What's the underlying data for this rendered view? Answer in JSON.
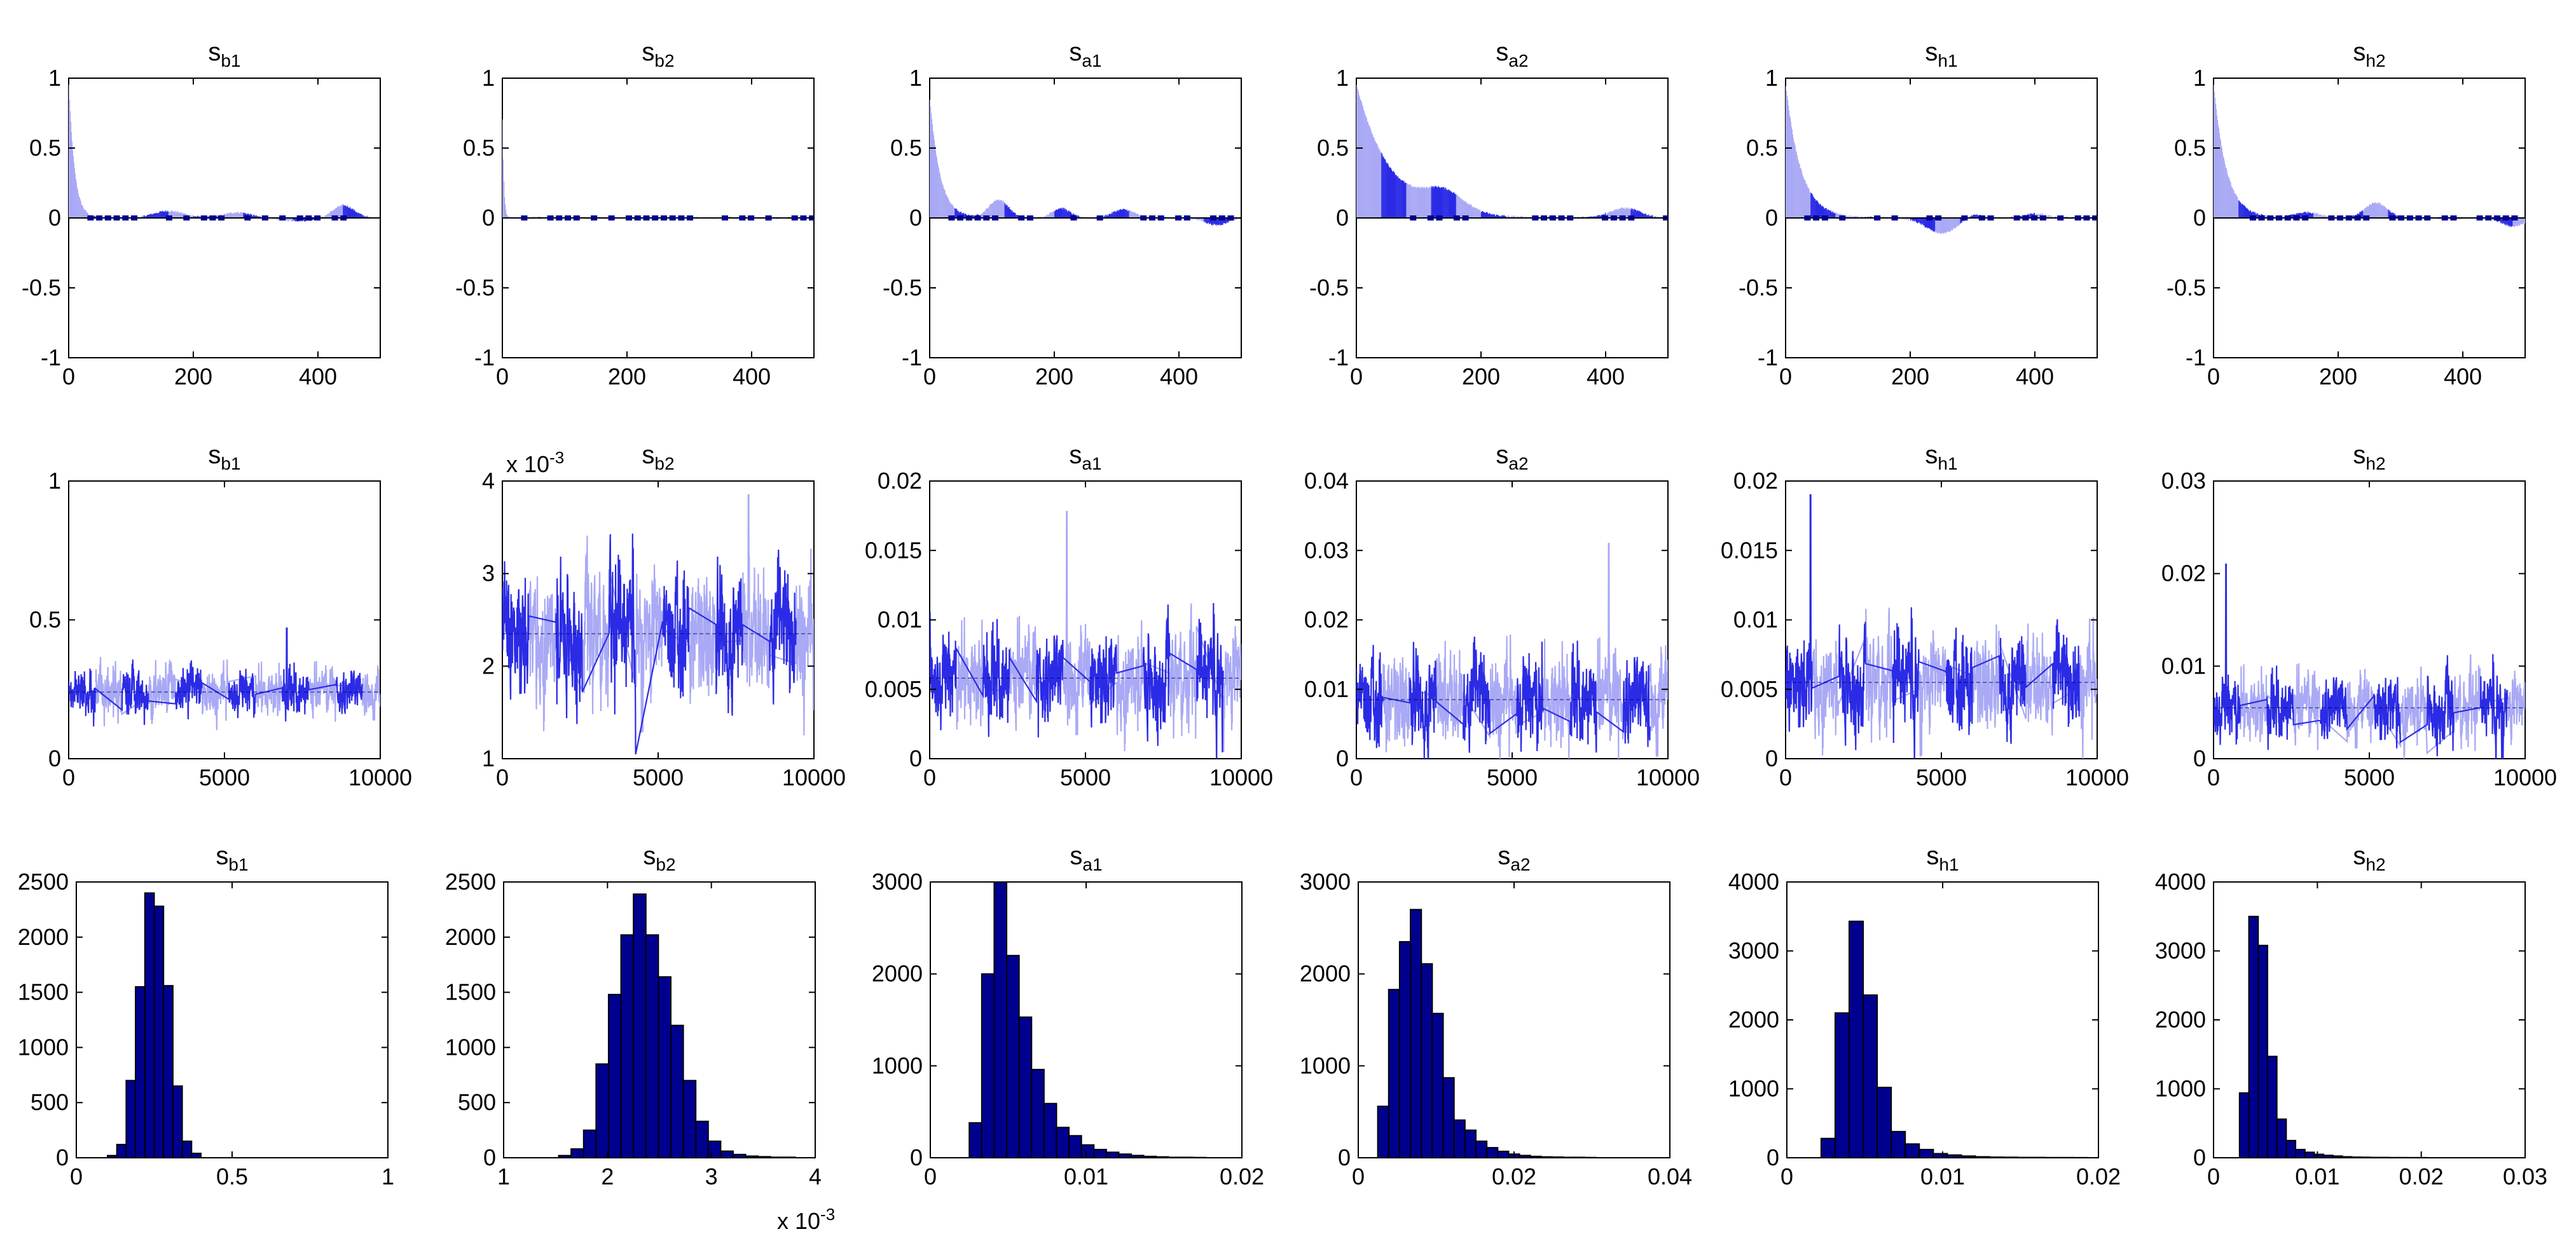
{
  "figure": {
    "rows": [
      "acf",
      "trace",
      "hist"
    ]
  },
  "colors": {
    "light": "#a9a9f5",
    "dark": "#2b2be6",
    "hist_fill": "#00008f",
    "edge": "#000000",
    "dots": "#00008a"
  },
  "chart_data": [
    {
      "panel": "acf-sb1",
      "type": "bar",
      "row": "acf",
      "title_base": "s",
      "title_sub": "b1",
      "xlim": [
        0,
        500
      ],
      "ylim": [
        -1,
        1
      ],
      "xticks": [
        "0",
        "200",
        "400"
      ],
      "yticks": [
        "-1",
        "-0.5",
        "0",
        "0.5",
        "1"
      ],
      "params": {
        "kind": "acf",
        "rho0": 0.95,
        "tau": 9,
        "bumps": [
          [
            160,
            0.05,
            35
          ],
          [
            270,
            0.04,
            30
          ],
          [
            440,
            0.09,
            25
          ],
          [
            370,
            -0.02,
            40
          ]
        ]
      }
    },
    {
      "panel": "acf-sb2",
      "type": "bar",
      "row": "acf",
      "title_base": "s",
      "title_sub": "b2",
      "xlim": [
        0,
        500
      ],
      "ylim": [
        -1,
        1
      ],
      "xticks": [
        "0",
        "200",
        "400"
      ],
      "yticks": [
        "-1",
        "-0.5",
        "0",
        "0.5",
        "1"
      ],
      "params": {
        "kind": "acf",
        "rho0": 0.7,
        "tau": 2,
        "bumps": []
      }
    },
    {
      "panel": "acf-sa1",
      "type": "bar",
      "row": "acf",
      "title_base": "s",
      "title_sub": "a1",
      "xlim": [
        0,
        500
      ],
      "ylim": [
        -1,
        1
      ],
      "xticks": [
        "0",
        "200",
        "400"
      ],
      "yticks": [
        "-1",
        "-0.5",
        "0",
        "0.5",
        "1"
      ],
      "params": {
        "kind": "acf",
        "rho0": 0.85,
        "tau": 16,
        "bumps": [
          [
            110,
            0.13,
            22
          ],
          [
            210,
            0.07,
            20
          ],
          [
            310,
            0.06,
            25
          ],
          [
            460,
            -0.05,
            25
          ]
        ]
      }
    },
    {
      "panel": "acf-sa2",
      "type": "bar",
      "row": "acf",
      "title_base": "s",
      "title_sub": "a2",
      "xlim": [
        0,
        500
      ],
      "ylim": [
        -1,
        1
      ],
      "xticks": [
        "0",
        "200",
        "400"
      ],
      "yticks": [
        "-1",
        "-0.5",
        "0",
        "0.5",
        "1"
      ],
      "params": {
        "kind": "acf",
        "rho0": 0.95,
        "tau": 55,
        "bumps": [
          [
            140,
            0.14,
            45
          ],
          [
            430,
            0.07,
            35
          ]
        ]
      }
    },
    {
      "panel": "acf-sh1",
      "type": "bar",
      "row": "acf",
      "title_base": "s",
      "title_sub": "h1",
      "xlim": [
        0,
        500
      ],
      "ylim": [
        -1,
        1
      ],
      "xticks": [
        "0",
        "200",
        "400"
      ],
      "yticks": [
        "-1",
        "-0.5",
        "0",
        "0.5",
        "1"
      ],
      "params": {
        "kind": "acf",
        "rho0": 0.95,
        "tau": 24,
        "bumps": [
          [
            250,
            -0.11,
            35
          ],
          [
            300,
            0.03,
            20
          ],
          [
            400,
            0.03,
            25
          ]
        ]
      }
    },
    {
      "panel": "acf-sh2",
      "type": "bar",
      "row": "acf",
      "title_base": "s",
      "title_sub": "h2",
      "xlim": [
        0,
        500
      ],
      "ylim": [
        -1,
        1
      ],
      "xticks": [
        "0",
        "200",
        "400"
      ],
      "yticks": [
        "-1",
        "-0.5",
        "0",
        "0.5",
        "1"
      ],
      "params": {
        "kind": "acf",
        "rho0": 0.95,
        "tau": 20,
        "bumps": [
          [
            150,
            0.04,
            30
          ],
          [
            260,
            0.11,
            25
          ],
          [
            480,
            -0.06,
            25
          ]
        ]
      }
    },
    {
      "panel": "trace-sb1",
      "type": "line",
      "row": "trace",
      "title_base": "s",
      "title_sub": "b1",
      "xlim": [
        0,
        10000
      ],
      "ylim": [
        0,
        1
      ],
      "xticks": [
        "0",
        "5000",
        "10000"
      ],
      "yticks": [
        "0",
        "0.5",
        "1"
      ],
      "params": {
        "kind": "trace",
        "mean": 0.24,
        "sd": 0.035,
        "spike": [
          7000,
          0.47
        ]
      }
    },
    {
      "panel": "trace-sb2",
      "type": "line",
      "row": "trace",
      "title_base": "s",
      "title_sub": "b2",
      "xlim": [
        0,
        10000
      ],
      "ylim": [
        1,
        4
      ],
      "xticks": [
        "0",
        "5000",
        "10000"
      ],
      "yticks": [
        "1",
        "2",
        "3",
        "4"
      ],
      "exponent_label": "x 10",
      "exponent_power": "-3",
      "params": {
        "kind": "trace",
        "mean": 2.35,
        "sd": 0.28,
        "spike": [
          7900,
          3.85
        ]
      }
    },
    {
      "panel": "trace-sa1",
      "type": "line",
      "row": "trace",
      "title_base": "s",
      "title_sub": "a1",
      "xlim": [
        0,
        10000
      ],
      "ylim": [
        0,
        0.02
      ],
      "xticks": [
        "0",
        "5000",
        "10000"
      ],
      "yticks": [
        "0",
        "0.005",
        "0.01",
        "0.015",
        "0.02"
      ],
      "params": {
        "kind": "trace",
        "mean": 0.0058,
        "sd": 0.0014,
        "spike": [
          4400,
          0.0178
        ]
      }
    },
    {
      "panel": "trace-sa2",
      "type": "line",
      "row": "trace",
      "title_base": "s",
      "title_sub": "a2",
      "xlim": [
        0,
        10000
      ],
      "ylim": [
        0,
        0.04
      ],
      "xticks": [
        "0",
        "5000",
        "10000"
      ],
      "yticks": [
        "0",
        "0.01",
        "0.02",
        "0.03",
        "0.04"
      ],
      "params": {
        "kind": "trace",
        "mean": 0.0085,
        "sd": 0.0028,
        "spike": [
          8100,
          0.031
        ]
      }
    },
    {
      "panel": "trace-sh1",
      "type": "line",
      "row": "trace",
      "title_base": "s",
      "title_sub": "h1",
      "xlim": [
        0,
        10000
      ],
      "ylim": [
        0,
        0.02
      ],
      "xticks": [
        "0",
        "5000",
        "10000"
      ],
      "yticks": [
        "0",
        "0.005",
        "0.01",
        "0.015",
        "0.02"
      ],
      "params": {
        "kind": "trace",
        "mean": 0.0055,
        "sd": 0.0014,
        "spike": [
          800,
          0.019
        ]
      }
    },
    {
      "panel": "trace-sh2",
      "type": "line",
      "row": "trace",
      "title_base": "s",
      "title_sub": "h2",
      "xlim": [
        0,
        10000
      ],
      "ylim": [
        0,
        0.03
      ],
      "xticks": [
        "0",
        "5000",
        "10000"
      ],
      "yticks": [
        "0",
        "0.01",
        "0.02",
        "0.03"
      ],
      "params": {
        "kind": "trace",
        "mean": 0.0055,
        "sd": 0.0015,
        "spike": [
          400,
          0.021
        ]
      }
    },
    {
      "panel": "hist-sb1",
      "type": "bar",
      "row": "hist",
      "title_base": "s",
      "title_sub": "b1",
      "xlim": [
        0,
        1
      ],
      "ylim": [
        0,
        2500
      ],
      "xticks": [
        "0",
        "0.5",
        "1"
      ],
      "yticks": [
        "0",
        "500",
        "1000",
        "1500",
        "2000",
        "2500"
      ],
      "bin_edges": [
        0.1,
        0.13,
        0.16,
        0.19,
        0.22,
        0.25,
        0.28,
        0.31,
        0.34,
        0.37,
        0.4
      ],
      "values": [
        20,
        120,
        700,
        1550,
        2400,
        2280,
        1560,
        650,
        150,
        40
      ]
    },
    {
      "panel": "hist-sb2",
      "type": "bar",
      "row": "hist",
      "title_base": "s",
      "title_sub": "b2",
      "xlim": [
        1,
        4
      ],
      "ylim": [
        0,
        2500
      ],
      "xticks": [
        "1",
        "2",
        "3",
        "4"
      ],
      "yticks": [
        "0",
        "500",
        "1000",
        "1500",
        "2000",
        "2500"
      ],
      "exponent_label": "x 10",
      "exponent_power": "-3",
      "bin_edges": [
        1.53,
        1.65,
        1.77,
        1.89,
        2.01,
        2.13,
        2.25,
        2.37,
        2.49,
        2.61,
        2.73,
        2.85,
        2.97,
        3.09,
        3.21,
        3.33,
        3.45,
        3.57,
        3.69,
        3.81
      ],
      "values": [
        20,
        80,
        250,
        850,
        1480,
        2020,
        2390,
        2020,
        1640,
        1200,
        700,
        330,
        150,
        60,
        30,
        15,
        10,
        5,
        5
      ]
    },
    {
      "panel": "hist-sa1",
      "type": "bar",
      "row": "hist",
      "title_base": "s",
      "title_sub": "a1",
      "xlim": [
        0,
        0.02
      ],
      "ylim": [
        0,
        3000
      ],
      "xticks": [
        "0",
        "0.01",
        "0.02"
      ],
      "yticks": [
        "0",
        "1000",
        "2000",
        "3000"
      ],
      "bin_edges": [
        0.0025,
        0.0033,
        0.0041,
        0.0049,
        0.0057,
        0.0065,
        0.0073,
        0.0081,
        0.0089,
        0.0097,
        0.0105,
        0.0113,
        0.0121,
        0.0129,
        0.0137,
        0.0145,
        0.0153,
        0.0161,
        0.0169,
        0.0177
      ],
      "values": [
        380,
        2000,
        3000,
        2200,
        1530,
        960,
        590,
        330,
        240,
        140,
        90,
        60,
        40,
        25,
        15,
        10,
        5,
        5,
        3
      ]
    },
    {
      "panel": "hist-sa2",
      "type": "bar",
      "row": "hist",
      "title_base": "s",
      "title_sub": "a2",
      "xlim": [
        0,
        0.04
      ],
      "ylim": [
        0,
        3000
      ],
      "xticks": [
        "0",
        "0.02",
        "0.04"
      ],
      "yticks": [
        "0",
        "1000",
        "2000",
        "3000"
      ],
      "bin_edges": [
        0.0025,
        0.0039,
        0.0053,
        0.0067,
        0.0081,
        0.0095,
        0.0109,
        0.0123,
        0.0137,
        0.0151,
        0.0165,
        0.0179,
        0.0193,
        0.0207,
        0.0221,
        0.0235,
        0.0249,
        0.0263,
        0.0277,
        0.0291,
        0.0305
      ],
      "values": [
        560,
        1830,
        2350,
        2700,
        2110,
        1570,
        870,
        410,
        300,
        180,
        110,
        70,
        40,
        25,
        15,
        10,
        8,
        5,
        5,
        3
      ]
    },
    {
      "panel": "hist-sh1",
      "type": "bar",
      "row": "hist",
      "title_base": "s",
      "title_sub": "h1",
      "xlim": [
        0,
        0.02
      ],
      "ylim": [
        0,
        4000
      ],
      "xticks": [
        "0",
        "0.01",
        "0.02"
      ],
      "yticks": [
        "0",
        "1000",
        "2000",
        "3000",
        "4000"
      ],
      "bin_edges": [
        0.0022,
        0.0031,
        0.004,
        0.0049,
        0.0058,
        0.0067,
        0.0076,
        0.0085,
        0.0094,
        0.0103,
        0.0112,
        0.0121,
        0.013,
        0.0139,
        0.0148,
        0.0157,
        0.0166,
        0.0175,
        0.0184,
        0.0193
      ],
      "values": [
        280,
        2100,
        3430,
        2360,
        1020,
        380,
        200,
        120,
        60,
        40,
        25,
        15,
        10,
        8,
        5,
        5,
        3,
        3,
        2
      ]
    },
    {
      "panel": "hist-sh2",
      "type": "bar",
      "row": "hist",
      "title_base": "s",
      "title_sub": "h2",
      "xlim": [
        0,
        0.03
      ],
      "ylim": [
        0,
        4000
      ],
      "xticks": [
        "0",
        "0.01",
        "0.02",
        "0.03"
      ],
      "yticks": [
        "0",
        "1000",
        "2000",
        "3000",
        "4000"
      ],
      "bin_edges": [
        0.0025,
        0.0034,
        0.0043,
        0.0052,
        0.0061,
        0.007,
        0.0079,
        0.0088,
        0.0097,
        0.0106,
        0.0115,
        0.0124,
        0.0133,
        0.0142,
        0.0151,
        0.016,
        0.0169,
        0.0178,
        0.0187,
        0.0196,
        0.0205
      ],
      "values": [
        940,
        3500,
        3080,
        1470,
        560,
        250,
        120,
        80,
        50,
        35,
        25,
        15,
        10,
        8,
        5,
        5,
        3,
        3,
        2,
        2
      ]
    }
  ]
}
